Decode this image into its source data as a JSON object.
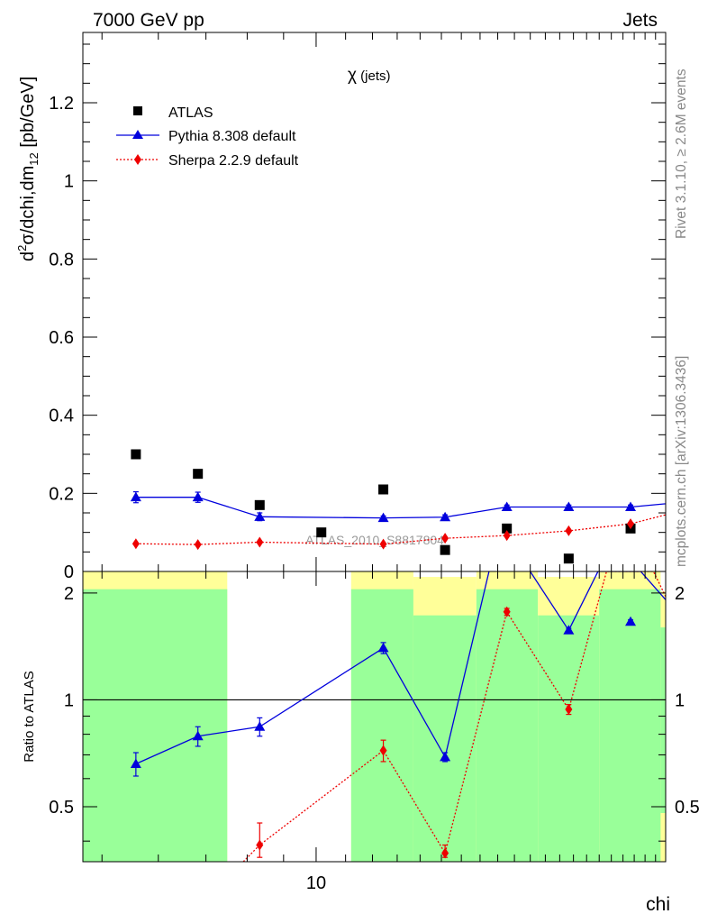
{
  "header": {
    "energy": "7000 GeV pp",
    "process": "Jets",
    "observable_symbol": "χ",
    "observable_suffix": " (jets)",
    "watermark": "ATLAS_2010_S8817804",
    "rivet_note": "Rivet 3.1.10, ≥ 2.6M events",
    "site_note": "mcplots.cern.ch [arXiv:1306.3436]"
  },
  "chart_data": [
    {
      "type": "scatter",
      "ylabel_parts": [
        "d",
        "2",
        "σ/dchi,dm",
        "12",
        " [pb/GeV]"
      ],
      "ylim": [
        0,
        1.38
      ],
      "yticks": [
        0,
        0.2,
        0.4,
        0.6,
        0.8,
        1,
        1.2
      ],
      "ytick_labels": [
        "0",
        "0.2",
        "0.4",
        "0.6",
        "0.8",
        "1",
        "1.2"
      ],
      "xscale": "log",
      "xlim": [
        4.7,
        31
      ],
      "series": [
        {
          "name": "ATLAS",
          "color": "#000000",
          "marker": "square",
          "x": [
            5.58,
            6.82,
            8.33,
            10.17,
            12.43,
            15.18,
            18.54,
            22.65,
            27.67
          ],
          "y": [
            0.3,
            0.25,
            0.17,
            0.1,
            0.21,
            0.055,
            0.11,
            0.033,
            0.11
          ]
        },
        {
          "name": "Pythia 8.308 default",
          "color": "#0000dd",
          "marker": "triangle",
          "x": [
            5.58,
            6.82,
            8.33,
            12.43,
            15.18,
            18.54,
            22.65,
            27.67
          ],
          "y": [
            0.19,
            0.19,
            0.14,
            0.137,
            0.139,
            0.165,
            0.165,
            0.165
          ],
          "yerr": [
            0.014,
            0.013,
            0.01,
            0.005,
            0.006,
            0.005,
            0.005,
            0.005
          ],
          "line_x": [
            5.58,
            6.82,
            8.33,
            12.43,
            15.18,
            18.54,
            22.65,
            27.67,
            33.0
          ],
          "line_y": [
            0.19,
            0.19,
            0.14,
            0.137,
            0.139,
            0.165,
            0.165,
            0.165,
            0.178
          ]
        },
        {
          "name": "Sherpa 2.2.9 default",
          "color": "#ee0000",
          "marker": "diamond",
          "x": [
            5.58,
            6.82,
            8.33,
            12.43,
            15.18,
            18.54,
            22.65,
            27.67
          ],
          "y": [
            0.071,
            0.069,
            0.075,
            0.07,
            0.085,
            0.092,
            0.104,
            0.122
          ],
          "line_x": [
            5.58,
            6.82,
            8.33,
            12.43,
            15.18,
            18.54,
            22.65,
            27.67,
            33.0
          ],
          "line_y": [
            0.071,
            0.069,
            0.075,
            0.07,
            0.085,
            0.092,
            0.104,
            0.122,
            0.158
          ]
        }
      ]
    },
    {
      "type": "scatter",
      "ylabel": "Ratio to ATLAS",
      "xlabel": "chi",
      "xscale": "log",
      "xlim": [
        4.7,
        31
      ],
      "ylim": [
        0.35,
        2.3
      ],
      "yticks": [
        0.5,
        1,
        2
      ],
      "ytick_labels": [
        "0.5",
        "1",
        "2"
      ],
      "xtick_labels": [
        "10"
      ],
      "xtick_values": [
        10
      ],
      "reference_line": 1,
      "bands": [
        {
          "x0": 4.7,
          "x1": 7.5,
          "green": [
            0.35,
            2.05
          ],
          "yellow": [
            0.35,
            2.3
          ]
        },
        {
          "x0": 7.5,
          "x1": 11.2,
          "green": null,
          "yellow": null
        },
        {
          "x0": 11.2,
          "x1": 13.7,
          "green": [
            0.35,
            2.05
          ],
          "yellow": [
            0.35,
            2.3
          ]
        },
        {
          "x0": 13.7,
          "x1": 16.8,
          "green": [
            0.35,
            1.73
          ],
          "yellow": [
            0.35,
            2.22
          ]
        },
        {
          "x0": 16.8,
          "x1": 20.5,
          "green": [
            0.35,
            2.05
          ],
          "yellow": [
            0.35,
            2.3
          ]
        },
        {
          "x0": 20.5,
          "x1": 25.0,
          "green": [
            0.35,
            1.73
          ],
          "yellow": [
            0.35,
            2.22
          ]
        },
        {
          "x0": 25.0,
          "x1": 30.5,
          "green": [
            0.35,
            2.05
          ],
          "yellow": [
            0.35,
            2.3
          ]
        },
        {
          "x0": 30.5,
          "x1": 31.0,
          "green": [
            0.48,
            1.6
          ],
          "yellow": [
            0.35,
            2.02
          ]
        }
      ],
      "series": [
        {
          "name": "Pythia 8.308 default",
          "color": "#0000dd",
          "marker": "triangle",
          "x": [
            5.58,
            6.82,
            8.33,
            12.43,
            15.18,
            22.65,
            27.67
          ],
          "y": [
            0.66,
            0.79,
            0.84,
            1.4,
            0.69,
            1.57,
            1.66
          ],
          "yerr": [
            0.05,
            0.05,
            0.05,
            0.05,
            0.02,
            0.02,
            0.02
          ],
          "line_x": [
            5.58,
            6.82,
            8.33,
            12.43,
            15.18,
            17.5,
            18.54,
            22.65,
            24.9,
            28.6,
            33.0
          ],
          "line_y": [
            0.66,
            0.79,
            0.84,
            1.4,
            0.69,
            2.3,
            2.9,
            1.57,
            2.3,
            2.3,
            1.66
          ]
        },
        {
          "name": "Sherpa 2.2.9 default",
          "color": "#ee0000",
          "marker": "diamond",
          "x": [
            8.33,
            12.43,
            15.18,
            18.54,
            22.65,
            33.0
          ],
          "y": [
            0.39,
            0.72,
            0.37,
            1.77,
            0.94,
            1.51
          ],
          "yerr": [
            0.06,
            0.05,
            0.02,
            0.04,
            0.03,
            0.02
          ],
          "line_x": [
            7.9,
            8.33,
            12.43,
            15.18,
            18.54,
            22.65,
            25.6,
            29.8,
            33.0
          ],
          "line_y": [
            0.35,
            0.39,
            0.72,
            0.37,
            1.77,
            0.94,
            2.3,
            2.3,
            1.51
          ]
        }
      ]
    }
  ]
}
